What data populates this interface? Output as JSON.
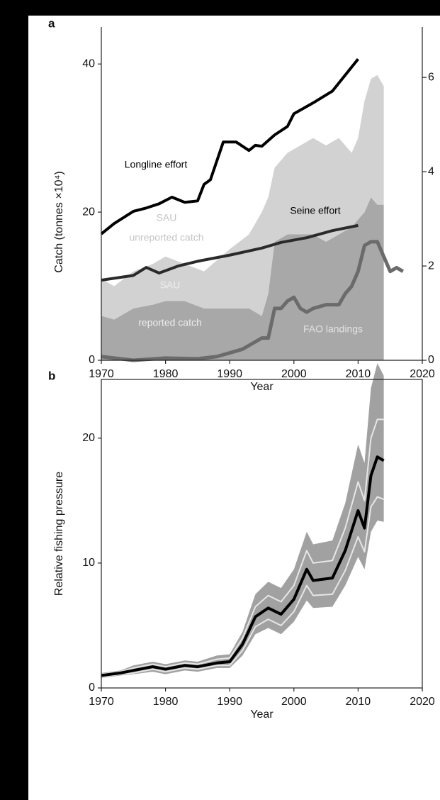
{
  "chart_data": [
    {
      "type": "line",
      "panel": "a",
      "xlabel": "Year",
      "ylabel": "Catch (tonnes ×10⁴)",
      "xlim": [
        1970,
        2020
      ],
      "xticks": [
        1970,
        1980,
        1990,
        2000,
        2010,
        2020
      ],
      "ylim": [
        0,
        45
      ],
      "yticks": [
        0,
        20,
        40
      ],
      "y2lim": [
        0,
        7.07
      ],
      "y2ticks": [
        0,
        2,
        4,
        6
      ],
      "series": [
        {
          "name": [
            "SAU",
            "reported catch"
          ],
          "type": "area",
          "color": "#a8a8a8",
          "x": [
            1970,
            1972,
            1975,
            1978,
            1980,
            1983,
            1986,
            1990,
            1993,
            1995,
            1996,
            1997,
            1999,
            2001,
            2003,
            2005,
            2007,
            2009,
            2010,
            2011,
            2012,
            2013,
            2014
          ],
          "values": [
            6,
            5.5,
            7,
            7.5,
            8,
            8,
            7,
            7,
            7,
            6,
            9,
            16,
            17,
            17,
            17,
            16,
            17,
            18,
            19,
            20,
            22,
            21,
            21
          ]
        },
        {
          "name": [
            "SAU",
            "unreported catch"
          ],
          "type": "area",
          "color": "#d2d2d2",
          "x": [
            1970,
            1972,
            1975,
            1978,
            1980,
            1983,
            1986,
            1990,
            1993,
            1995,
            1996,
            1997,
            1999,
            2001,
            2003,
            2005,
            2007,
            2009,
            2010,
            2011,
            2012,
            2013,
            2014
          ],
          "values": [
            5,
            4.5,
            5,
            5.5,
            6,
            5,
            5,
            8,
            10,
            14,
            13,
            10,
            11,
            12,
            13,
            13,
            13,
            10,
            11,
            15,
            16,
            17.5,
            16
          ]
        },
        {
          "name": "FAO landings",
          "type": "line",
          "color": "#6b6b6b",
          "x": [
            1970,
            1972,
            1975,
            1980,
            1985,
            1988,
            1990,
            1992,
            1994,
            1995,
            1996,
            1997,
            1998,
            1999,
            2000,
            2001,
            2002,
            2003,
            2005,
            2007,
            2008,
            2009,
            2010,
            2011,
            2012,
            2013,
            2014,
            2015,
            2016,
            2017
          ],
          "values": [
            0.5,
            0.3,
            0,
            0.3,
            0.2,
            0.5,
            1,
            1.5,
            2.5,
            3,
            3,
            7,
            7,
            8,
            8.5,
            7,
            6.5,
            7,
            7.5,
            7.5,
            9,
            10,
            12,
            15.5,
            16,
            16,
            14,
            12,
            12.5,
            12
          ]
        },
        {
          "name": "Longline effort",
          "type": "line",
          "axis": "y2",
          "color": "#000000",
          "x": [
            1970,
            1972,
            1975,
            1977,
            1979,
            1981,
            1983,
            1985,
            1986,
            1987,
            1989,
            1991,
            1993,
            1994,
            1995,
            1997,
            1999,
            2000,
            2003,
            2006,
            2010
          ],
          "values": [
            2.68,
            2.9,
            3.16,
            3.23,
            3.32,
            3.46,
            3.35,
            3.38,
            3.73,
            3.83,
            4.63,
            4.63,
            4.45,
            4.56,
            4.54,
            4.78,
            4.96,
            5.23,
            5.46,
            5.71,
            6.39
          ]
        },
        {
          "name": "Seine effort",
          "type": "line",
          "axis": "y2",
          "color": "#2a2a2a",
          "x": [
            1970,
            1975,
            1977,
            1979,
            1982,
            1985,
            1990,
            1995,
            1998,
            2002,
            2006,
            2010
          ],
          "values": [
            1.7,
            1.8,
            1.97,
            1.85,
            2.0,
            2.1,
            2.23,
            2.38,
            2.5,
            2.6,
            2.75,
            2.86
          ]
        }
      ]
    },
    {
      "type": "line",
      "panel": "b",
      "xlabel": "Year",
      "ylabel": "Relative fishing pressure",
      "xlim": [
        1970,
        2020
      ],
      "xticks": [
        1970,
        1980,
        1990,
        2000,
        2010,
        2020
      ],
      "ylim": [
        0,
        24.7
      ],
      "yticks": [
        0,
        10,
        20
      ],
      "band": {
        "color": "#8a8a8a",
        "x": [
          1970,
          1973,
          1975,
          1978,
          1980,
          1983,
          1985,
          1988,
          1990,
          1992,
          1994,
          1996,
          1998,
          2000,
          2002,
          2003,
          2006,
          2008,
          2010,
          2011,
          2012,
          2013,
          2014
        ],
        "upper": [
          1.2,
          1.4,
          1.8,
          2.1,
          1.9,
          2.2,
          2.1,
          2.6,
          2.7,
          4.5,
          7.5,
          8.5,
          8,
          9.5,
          12.5,
          11.5,
          11.8,
          14.8,
          19.5,
          18,
          24,
          26,
          25
        ],
        "lower": [
          0.8,
          1,
          1.1,
          1.3,
          1.1,
          1.4,
          1.3,
          1.6,
          1.6,
          2.6,
          4.3,
          4.8,
          4.3,
          5.3,
          7,
          6.4,
          6.5,
          8.2,
          10.5,
          9.5,
          12.5,
          13.4,
          13.3
        ]
      },
      "series": [
        {
          "type": "line",
          "color": "#e6e6e6",
          "x": [
            1970,
            1973,
            1975,
            1978,
            1980,
            1983,
            1985,
            1988,
            1990,
            1992,
            1994,
            1996,
            1998,
            2000,
            2002,
            2003,
            2006,
            2008,
            2010,
            2011,
            2012,
            2013,
            2014
          ],
          "values": [
            1.1,
            1.3,
            1.6,
            1.9,
            1.7,
            2,
            1.9,
            2.3,
            2.4,
            4,
            6.5,
            7.4,
            6.9,
            8.2,
            11,
            10,
            10.2,
            12.8,
            16.5,
            15,
            20,
            21.5,
            21.5
          ]
        },
        {
          "type": "line",
          "color": "#e6e6e6",
          "x": [
            1970,
            1973,
            1975,
            1978,
            1980,
            1983,
            1985,
            1988,
            1990,
            1992,
            1994,
            1996,
            1998,
            2000,
            2002,
            2003,
            2006,
            2008,
            2010,
            2011,
            2012,
            2013,
            2014
          ],
          "values": [
            0.9,
            1.1,
            1.2,
            1.5,
            1.3,
            1.6,
            1.5,
            1.8,
            1.8,
            3,
            4.9,
            5.5,
            5,
            6.1,
            8.2,
            7.4,
            7.5,
            9.4,
            12.1,
            10.9,
            14.5,
            15.3,
            15.1
          ]
        },
        {
          "type": "line",
          "color": "#000000",
          "x": [
            1970,
            1973,
            1975,
            1978,
            1980,
            1983,
            1985,
            1988,
            1990,
            1992,
            1994,
            1996,
            1998,
            2000,
            2002,
            2003,
            2006,
            2008,
            2010,
            2011,
            2012,
            2013,
            2014
          ],
          "values": [
            1,
            1.2,
            1.4,
            1.7,
            1.5,
            1.8,
            1.7,
            2,
            2.1,
            3.5,
            5.7,
            6.4,
            5.9,
            7.1,
            9.5,
            8.6,
            8.8,
            11,
            14.2,
            12.8,
            17,
            18.5,
            18.2
          ]
        }
      ]
    }
  ]
}
